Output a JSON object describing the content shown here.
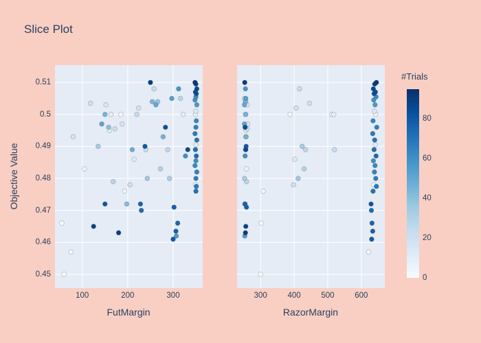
{
  "colors": {
    "page_bg": "#f9cfc3",
    "plot_bg": "#e5ecf6",
    "grid": "#ffffff",
    "font": "#2a3f5f",
    "colorscale": [
      "#f7fbff",
      "#deebf7",
      "#c6dbef",
      "#9ecae1",
      "#6baed6",
      "#4292c6",
      "#2171b5",
      "#08519c",
      "#08306b"
    ]
  },
  "chart_data": {
    "type": "scatter",
    "title": "Slice Plot",
    "ylabel": "Objective Value",
    "yticks": [
      0.45,
      0.46,
      0.47,
      0.48,
      0.49,
      0.5,
      0.51
    ],
    "ylim": [
      0.4457,
      0.5154
    ],
    "subplots": [
      {
        "xlabel": "FutMargin",
        "xticks": [
          100,
          200,
          300
        ],
        "xlim": [
          40,
          365
        ]
      },
      {
        "xlabel": "RazorMargin",
        "xticks": [
          300,
          400,
          500,
          600
        ],
        "xlim": [
          230,
          670
        ]
      }
    ],
    "color": {
      "label": "#Trials",
      "min": 0,
      "max": 95,
      "ticks": [
        0,
        20,
        40,
        60,
        80
      ],
      "colorscale_name": "Blues"
    },
    "columns": [
      "FutMargin",
      "RazorMargin",
      "objective",
      "trial"
    ],
    "rows": [
      [
        55,
        302,
        0.466,
        1
      ],
      [
        60,
        300,
        0.45,
        0
      ],
      [
        75,
        622,
        0.457,
        3
      ],
      [
        105,
        258,
        0.483,
        6
      ],
      [
        125,
        256,
        0.465,
        88
      ],
      [
        135,
        424,
        0.49,
        34
      ],
      [
        143,
        252,
        0.497,
        52
      ],
      [
        150,
        255,
        0.5,
        45
      ],
      [
        152,
        260,
        0.503,
        14
      ],
      [
        158,
        254,
        0.496,
        40
      ],
      [
        160,
        256,
        0.495,
        10
      ],
      [
        163,
        512,
        0.5,
        8
      ],
      [
        168,
        258,
        0.479,
        28
      ],
      [
        180,
        255,
        0.463,
        90
      ],
      [
        185,
        388,
        0.5,
        2
      ],
      [
        188,
        262,
        0.497,
        16
      ],
      [
        193,
        308,
        0.476,
        5
      ],
      [
        198,
        253,
        0.472,
        42
      ],
      [
        205,
        398,
        0.478,
        20
      ],
      [
        210,
        255,
        0.489,
        48
      ],
      [
        214,
        402,
        0.486,
        12
      ],
      [
        220,
        256,
        0.5,
        24
      ],
      [
        224,
        406,
        0.502,
        18
      ],
      [
        228,
        254,
        0.472,
        76
      ],
      [
        238,
        257,
        0.49,
        80
      ],
      [
        243,
        412,
        0.48,
        36
      ],
      [
        250,
        253,
        0.51,
        91
      ],
      [
        254,
        256,
        0.504,
        44
      ],
      [
        258,
        416,
        0.508,
        22
      ],
      [
        262,
        252,
        0.503,
        50
      ],
      [
        266,
        255,
        0.504,
        38
      ],
      [
        272,
        430,
        0.483,
        30
      ],
      [
        278,
        257,
        0.493,
        46
      ],
      [
        283,
        254,
        0.496,
        84
      ],
      [
        288,
        434,
        0.489,
        26
      ],
      [
        292,
        252,
        0.48,
        32
      ],
      [
        297,
        256,
        0.505,
        54
      ],
      [
        302,
        258,
        0.471,
        78
      ],
      [
        307,
        253,
        0.462,
        56
      ],
      [
        312,
        255,
        0.508,
        58
      ],
      [
        316,
        252,
        0.505,
        27
      ],
      [
        322,
        518,
        0.5,
        9
      ],
      [
        327,
        254,
        0.487,
        60
      ],
      [
        332,
        256,
        0.489,
        86
      ],
      [
        348,
        645,
        0.51,
        92
      ],
      [
        350,
        640,
        0.5095,
        89
      ],
      [
        352,
        636,
        0.508,
        87
      ],
      [
        349,
        642,
        0.507,
        85
      ],
      [
        351,
        638,
        0.5065,
        83
      ],
      [
        350,
        644,
        0.5055,
        62
      ],
      [
        348,
        637,
        0.5045,
        59
      ],
      [
        352,
        641,
        0.503,
        57
      ],
      [
        350,
        639,
        0.501,
        13
      ],
      [
        349,
        643,
        0.5,
        7
      ],
      [
        351,
        635,
        0.498,
        64
      ],
      [
        350,
        646,
        0.496,
        66
      ],
      [
        348,
        634,
        0.494,
        68
      ],
      [
        352,
        640,
        0.492,
        70
      ],
      [
        350,
        642,
        0.4905,
        11
      ],
      [
        349,
        638,
        0.489,
        72
      ],
      [
        351,
        644,
        0.487,
        74
      ],
      [
        350,
        636,
        0.4855,
        61
      ],
      [
        348,
        641,
        0.484,
        63
      ],
      [
        352,
        639,
        0.482,
        65
      ],
      [
        350,
        643,
        0.48,
        67
      ],
      [
        349,
        637,
        0.478,
        4
      ],
      [
        351,
        645,
        0.4775,
        69
      ],
      [
        350,
        635,
        0.476,
        71
      ],
      [
        230,
        630,
        0.47,
        73
      ],
      [
        310,
        632,
        0.466,
        75
      ],
      [
        306,
        634,
        0.4635,
        77
      ],
      [
        300,
        631,
        0.461,
        79
      ],
      [
        150,
        629,
        0.472,
        81
      ],
      [
        80,
        256,
        0.493,
        17
      ],
      [
        118,
        446,
        0.5035,
        19
      ],
      [
        172,
        260,
        0.4955,
        21
      ],
      [
        240,
        520,
        0.489,
        23
      ]
    ]
  }
}
